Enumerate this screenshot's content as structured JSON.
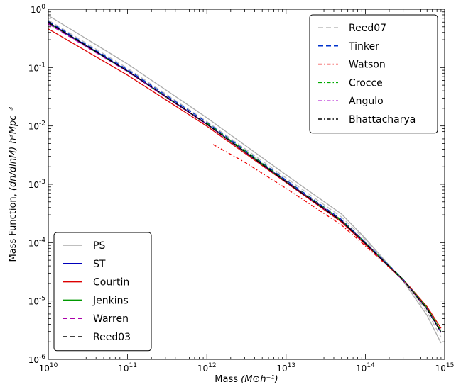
{
  "chart_data": {
    "type": "line",
    "xlabel_text": "Mass ",
    "xlabel_unit": "(M⊙h⁻¹)",
    "ylabel_text": "Mass Function, ",
    "ylabel_unit": "(dn/dlnM) h³Mpc⁻³",
    "xscale": "log",
    "yscale": "log",
    "xlim": [
      10000000000.0,
      1000000000000000.0
    ],
    "ylim": [
      1e-06,
      1
    ],
    "x_ticks": [
      "10",
      "10",
      "10",
      "10",
      "10",
      "10"
    ],
    "x_tick_exponents": [
      "10",
      "11",
      "12",
      "13",
      "14",
      "15"
    ],
    "y_ticks": [
      "10",
      "10",
      "10",
      "10",
      "10",
      "10",
      "10"
    ],
    "y_tick_exponents": [
      "-6",
      "-5",
      "-4",
      "-3",
      "-2",
      "-1",
      "0"
    ],
    "grid": false,
    "legends": [
      {
        "placement": "top-right",
        "entries": [
          "Reed07",
          "Tinker",
          "Watson",
          "Crocce",
          "Angulo",
          "Bhattacharya"
        ]
      },
      {
        "placement": "bottom-left",
        "entries": [
          "PS",
          "ST",
          "Courtin",
          "Jenkins",
          "Warren",
          "Reed03"
        ]
      }
    ],
    "series": [
      {
        "name": "PS",
        "color": "#aaaaaa",
        "dash": "solid",
        "legend": 1,
        "x": [
          10000000000.0,
          100000000000.0,
          1000000000000.0,
          10000000000000.0,
          50000000000000.0,
          100000000000000.0,
          300000000000000.0,
          600000000000000.0,
          900000000000000.0
        ],
        "y": [
          0.78,
          0.115,
          0.0138,
          0.00145,
          0.00031,
          0.000118,
          2.2e-05,
          5.7e-06,
          1.9e-06
        ]
      },
      {
        "name": "ST",
        "color": "#0000bb",
        "dash": "solid",
        "legend": 1,
        "x": [
          10000000000.0,
          100000000000.0,
          1000000000000.0,
          10000000000000.0,
          50000000000000.0,
          100000000000000.0,
          300000000000000.0,
          600000000000000.0,
          900000000000000.0
        ],
        "y": [
          0.6,
          0.088,
          0.0108,
          0.00112,
          0.00024,
          0.0001,
          2.3e-05,
          7.5e-06,
          2.9e-06
        ]
      },
      {
        "name": "Courtin",
        "color": "#dd0000",
        "dash": "solid",
        "legend": 1,
        "x": [
          10000000000.0,
          100000000000.0,
          1000000000000.0,
          10000000000000.0,
          50000000000000.0,
          100000000000000.0,
          300000000000000.0,
          600000000000000.0,
          900000000000000.0
        ],
        "y": [
          0.46,
          0.074,
          0.0099,
          0.00107,
          0.000225,
          9.3e-05,
          2.35e-05,
          8e-06,
          3.4e-06
        ]
      },
      {
        "name": "Jenkins",
        "color": "#009900",
        "dash": "solid",
        "legend": 1,
        "x": [
          10000000000.0,
          100000000000.0,
          1000000000000.0,
          10000000000000.0,
          50000000000000.0,
          100000000000000.0,
          300000000000000.0,
          600000000000000.0,
          900000000000000.0
        ],
        "y": [
          0.58,
          0.086,
          0.0106,
          0.0011,
          0.000236,
          9.8e-05,
          2.3e-05,
          7.6e-06,
          3e-06
        ]
      },
      {
        "name": "Warren",
        "color": "#aa00aa",
        "dash": "dashed",
        "legend": 1,
        "x": [
          10000000000.0,
          100000000000.0,
          1000000000000.0,
          10000000000000.0,
          50000000000000.0,
          100000000000000.0,
          300000000000000.0,
          600000000000000.0,
          900000000000000.0
        ],
        "y": [
          0.56,
          0.085,
          0.0106,
          0.00109,
          0.000232,
          9.6e-05,
          2.25e-05,
          7.3e-06,
          2.9e-06
        ]
      },
      {
        "name": "Reed03",
        "color": "#000000",
        "dash": "dashed",
        "legend": 1,
        "x": [
          10000000000.0,
          100000000000.0,
          1000000000000.0,
          10000000000000.0,
          50000000000000.0,
          100000000000000.0,
          300000000000000.0,
          600000000000000.0,
          900000000000000.0
        ],
        "y": [
          0.6,
          0.087,
          0.0107,
          0.0011,
          0.000234,
          9.7e-05,
          2.25e-05,
          7.2e-06,
          2.9e-06
        ]
      },
      {
        "name": "Reed07",
        "color": "#bbbbbb",
        "dash": "dashed",
        "legend": 0,
        "x": [
          10000000000.0,
          100000000000.0,
          1000000000000.0,
          10000000000000.0,
          50000000000000.0,
          100000000000000.0,
          300000000000000.0,
          600000000000000.0,
          900000000000000.0
        ],
        "y": [
          0.65,
          0.097,
          0.0119,
          0.00128,
          0.000275,
          0.000112,
          2.3e-05,
          6.5e-06,
          2.4e-06
        ]
      },
      {
        "name": "Tinker",
        "color": "#0033cc",
        "dash": "dashed",
        "legend": 0,
        "x": [
          10000000000.0,
          100000000000.0,
          1000000000000.0,
          10000000000000.0,
          50000000000000.0,
          100000000000000.0,
          300000000000000.0,
          600000000000000.0,
          900000000000000.0
        ],
        "y": [
          0.62,
          0.092,
          0.0115,
          0.00118,
          0.00025,
          0.000102,
          2.35e-05,
          7.4e-06,
          2.9e-06
        ]
      },
      {
        "name": "Watson",
        "color": "#ee0000",
        "dash": "dashdot",
        "legend": 0,
        "x": [
          1200000000000.0,
          3000000000000.0,
          10000000000000.0,
          50000000000000.0,
          100000000000000.0,
          300000000000000.0,
          600000000000000.0,
          900000000000000.0
        ],
        "y": [
          0.0048,
          0.0024,
          0.00085,
          0.0002,
          8.8e-05,
          2.3e-05,
          7.6e-06,
          3.1e-06
        ]
      },
      {
        "name": "Crocce",
        "color": "#00aa00",
        "dash": "dashdot",
        "legend": 0,
        "x": [
          1000000000000.0,
          10000000000000.0,
          50000000000000.0,
          100000000000000.0,
          300000000000000.0,
          600000000000000.0,
          900000000000000.0
        ],
        "y": [
          0.0112,
          0.00115,
          0.000245,
          0.0001,
          2.35e-05,
          7.7e-06,
          3.1e-06
        ]
      },
      {
        "name": "Angulo",
        "color": "#aa00cc",
        "dash": "dashdot",
        "legend": 0,
        "x": [
          10000000000.0,
          100000000000.0,
          1000000000000.0,
          10000000000000.0,
          50000000000000.0,
          100000000000000.0,
          300000000000000.0,
          600000000000000.0,
          900000000000000.0
        ],
        "y": [
          0.57,
          0.086,
          0.0107,
          0.00112,
          0.00024,
          9.9e-05,
          2.3e-05,
          7.4e-06,
          2.9e-06
        ]
      },
      {
        "name": "Bhattacharya",
        "color": "#000000",
        "dash": "dashdot",
        "legend": 0,
        "x": [
          10000000000.0,
          100000000000.0,
          1000000000000.0,
          10000000000000.0,
          50000000000000.0,
          100000000000000.0,
          300000000000000.0,
          600000000000000.0,
          900000000000000.0
        ],
        "y": [
          0.59,
          0.087,
          0.0108,
          0.00111,
          0.000236,
          9.7e-05,
          2.3e-05,
          7.4e-06,
          2.9e-06
        ]
      }
    ]
  }
}
